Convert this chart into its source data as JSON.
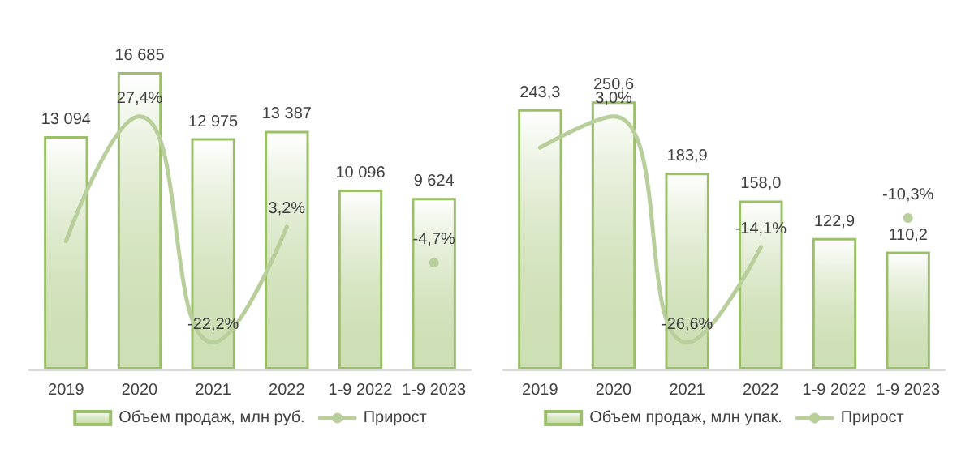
{
  "chart_data": [
    {
      "type": "bar",
      "categories": [
        "2019",
        "2020",
        "2021",
        "2022",
        "1-9 2022",
        "1-9 2023"
      ],
      "legend": "bottom",
      "series": [
        {
          "name": "Объем продаж, млн руб.",
          "color": "#9cbf6a",
          "values": [
            13094,
            16685,
            12975,
            13387,
            10096,
            9624
          ],
          "value_labels": [
            "13 094",
            "16 685",
            "12 975",
            "13 387",
            "10 096",
            "9 624"
          ]
        },
        {
          "name": "Прирост",
          "type": "line",
          "axis": "y2",
          "color": "#b8cf9c",
          "marker": "none",
          "values": [
            0,
            27.4,
            -22.2,
            3.2,
            null,
            -4.7
          ],
          "value_labels": [
            null,
            "27,4%",
            "-22,2%",
            "3,2%",
            null,
            "-4,7%"
          ]
        }
      ]
    },
    {
      "type": "bar",
      "categories": [
        "2019",
        "2020",
        "2021",
        "2022",
        "1-9 2022",
        "1-9 2023"
      ],
      "legend": "bottom",
      "series": [
        {
          "name": "Объем продаж, млн упак.",
          "color": "#9cbf6a",
          "values": [
            243.3,
            250.6,
            183.9,
            158.0,
            122.9,
            110.2
          ],
          "value_labels": [
            "243,3",
            "250,6",
            "183,9",
            "158,0",
            "122,9",
            "110,2"
          ]
        },
        {
          "name": "Прирост",
          "type": "line",
          "axis": "y2",
          "color": "#b8cf9c",
          "marker": "none",
          "values": [
            -1.1,
            3.0,
            -26.6,
            -14.1,
            null,
            -10.3
          ],
          "value_labels": [
            null,
            "3,0%",
            "-26,6%",
            "-14,1%",
            null,
            "-10,3%"
          ]
        }
      ]
    }
  ]
}
